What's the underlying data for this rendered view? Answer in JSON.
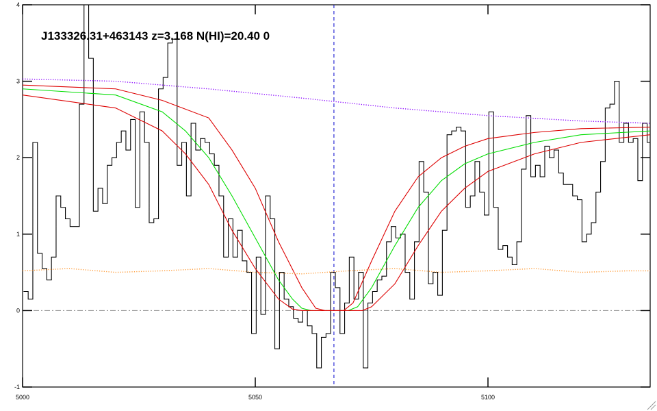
{
  "chart_data": {
    "type": "line",
    "title": "J133326.31+463143 z=3.168 N(HI)=20.40 0",
    "xlim": [
      5000,
      5134.85
    ],
    "ylim": [
      -1,
      4
    ],
    "xticks": [
      5000,
      5050,
      5100
    ],
    "yticks": [
      -1,
      0,
      1,
      2,
      3,
      4
    ],
    "hline": 0,
    "vline": 5066.9,
    "series": [
      {
        "color": "#000000",
        "style": "steps",
        "x": [
          5000.7,
          5001.7,
          5002.7,
          5003.7,
          5004.7,
          5005.7,
          5006.7,
          5007.7,
          5008.7,
          5009.7,
          5010.7,
          5011.7,
          5012.7,
          5013.7,
          5014.7,
          5015.7,
          5016.7,
          5017.7,
          5018.7,
          5019.7,
          5020.7,
          5021.7,
          5022.7,
          5023.7,
          5024.7,
          5025.7,
          5026.7,
          5027.7,
          5028.7,
          5029.7,
          5030.7,
          5031.7,
          5032.7,
          5033.7,
          5034.7,
          5035.7,
          5036.7,
          5037.7,
          5038.7,
          5039.7,
          5040.7,
          5041.7,
          5042.7,
          5043.7,
          5044.7,
          5045.7,
          5046.7,
          5047.7,
          5048.7,
          5049.7,
          5050.7,
          5051.7,
          5052.7,
          5053.7,
          5054.7,
          5055.7,
          5056.7,
          5057.7,
          5058.7,
          5059.7,
          5060.7,
          5061.7,
          5062.7,
          5063.7,
          5064.7,
          5065.7,
          5066.7,
          5067.7,
          5068.7,
          5069.7,
          5070.7,
          5071.7,
          5072.7,
          5073.7,
          5074.7,
          5075.7,
          5076.7,
          5077.7,
          5078.7,
          5079.7,
          5080.7,
          5081.7,
          5082.7,
          5083.7,
          5084.7,
          5085.7,
          5086.7,
          5087.7,
          5088.7,
          5089.7,
          5090.7,
          5091.7,
          5092.7,
          5093.7,
          5094.7,
          5095.7,
          5096.7,
          5097.7,
          5098.7,
          5099.7,
          5100.7,
          5101.7,
          5102.7,
          5103.7,
          5104.7,
          5105.7,
          5106.7,
          5107.7,
          5108.7,
          5109.7,
          5110.7,
          5111.7,
          5112.7,
          5113.7,
          5114.7,
          5115.7,
          5116.7,
          5117.7,
          5118.7,
          5119.7,
          5120.7,
          5121.7,
          5122.7,
          5123.7,
          5124.7,
          5125.7,
          5126.7,
          5127.7,
          5128.7,
          5129.7,
          5130.7,
          5131.7,
          5132.7,
          5133.7,
          5134.7
        ],
        "values": [
          0.25,
          0.15,
          2.2,
          0.75,
          0.55,
          0.4,
          0.7,
          1.5,
          1.35,
          1.2,
          1.1,
          1.1,
          2.7,
          4.0,
          3.3,
          1.3,
          1.6,
          1.4,
          1.9,
          2.0,
          2.2,
          2.35,
          2.1,
          2.5,
          1.35,
          2.6,
          2.2,
          1.15,
          1.2,
          2.9,
          3.05,
          3.5,
          3.55,
          1.9,
          2.2,
          1.5,
          2.45,
          2.1,
          2.25,
          2.2,
          2.05,
          1.9,
          1.5,
          0.7,
          1.2,
          0.7,
          1.05,
          0.65,
          0.5,
          -0.3,
          0.7,
          -0.05,
          1.5,
          1.2,
          -0.5,
          0.5,
          0.15,
          0.05,
          -0.1,
          -0.15,
          0.0,
          -0.2,
          -0.3,
          -0.75,
          -0.35,
          -0.3,
          0.5,
          0.3,
          -0.3,
          0.1,
          0.7,
          0.15,
          0.5,
          -0.75,
          0.1,
          0.25,
          0.4,
          0.45,
          0.9,
          1.1,
          0.95,
          1.0,
          0.5,
          0.15,
          0.9,
          1.95,
          1.55,
          0.35,
          0.5,
          0.2,
          1.05,
          2.3,
          2.35,
          2.4,
          2.35,
          1.35,
          1.5,
          1.95,
          1.55,
          1.25,
          2.6,
          1.35,
          0.8,
          0.85,
          0.7,
          0.6,
          0.9,
          1.85,
          2.55,
          1.75,
          1.9,
          1.75,
          2.15,
          2.0,
          2.1,
          1.8,
          1.65,
          1.65,
          1.5,
          1.45,
          0.9,
          1.0,
          1.15,
          1.55,
          1.95,
          2.65,
          2.7,
          3.0,
          2.2,
          2.45,
          2.2,
          2.25,
          1.7,
          2.45,
          2.2
        ]
      },
      {
        "color": "#00dd00",
        "style": "solid",
        "x": [
          5000,
          5020,
          5030,
          5035,
          5040,
          5045,
          5050,
          5055,
          5058,
          5060,
          5062,
          5070,
          5072,
          5075,
          5080,
          5085,
          5090,
          5095,
          5100,
          5110,
          5120,
          5134.85
        ],
        "values": [
          2.9,
          2.82,
          2.6,
          2.35,
          2.0,
          1.5,
          0.95,
          0.4,
          0.15,
          0.03,
          0,
          0,
          0.05,
          0.3,
          0.85,
          1.35,
          1.7,
          1.92,
          2.05,
          2.2,
          2.3,
          2.35
        ]
      },
      {
        "color": "#dd0000",
        "style": "solid",
        "x": [
          5000,
          5020,
          5030,
          5040,
          5045,
          5050,
          5055,
          5060,
          5063,
          5065,
          5069,
          5071,
          5075,
          5080,
          5085,
          5090,
          5095,
          5100,
          5110,
          5120,
          5134.85
        ],
        "values": [
          2.95,
          2.9,
          2.75,
          2.52,
          2.1,
          1.6,
          0.9,
          0.3,
          0.03,
          0,
          0,
          0.1,
          0.65,
          1.3,
          1.75,
          2.0,
          2.15,
          2.25,
          2.33,
          2.38,
          2.4
        ]
      },
      {
        "color": "#dd0000",
        "style": "solid",
        "x": [
          5000,
          5020,
          5030,
          5035,
          5040,
          5045,
          5050,
          5055,
          5058,
          5060,
          5073,
          5075,
          5080,
          5085,
          5090,
          5095,
          5100,
          5110,
          5120,
          5134.85
        ],
        "values": [
          2.82,
          2.65,
          2.35,
          2.05,
          1.65,
          1.05,
          0.55,
          0.15,
          0.02,
          0,
          0,
          0.05,
          0.35,
          0.85,
          1.3,
          1.6,
          1.82,
          2.05,
          2.2,
          2.3
        ]
      },
      {
        "color": "#8800ff",
        "style": "dotted",
        "x": [
          5000,
          5020,
          5040,
          5060,
          5080,
          5100,
          5120,
          5134.85
        ],
        "values": [
          3.03,
          3.0,
          2.9,
          2.78,
          2.65,
          2.55,
          2.48,
          2.45
        ]
      },
      {
        "color": "#ff9933",
        "style": "dotted",
        "x": [
          5000,
          5010,
          5020,
          5030,
          5040,
          5050,
          5060,
          5070,
          5080,
          5090,
          5100,
          5110,
          5120,
          5130,
          5134.85
        ],
        "values": [
          0.52,
          0.55,
          0.5,
          0.52,
          0.55,
          0.5,
          0.48,
          0.52,
          0.55,
          0.5,
          0.52,
          0.55,
          0.5,
          0.52,
          0.52
        ]
      }
    ]
  }
}
